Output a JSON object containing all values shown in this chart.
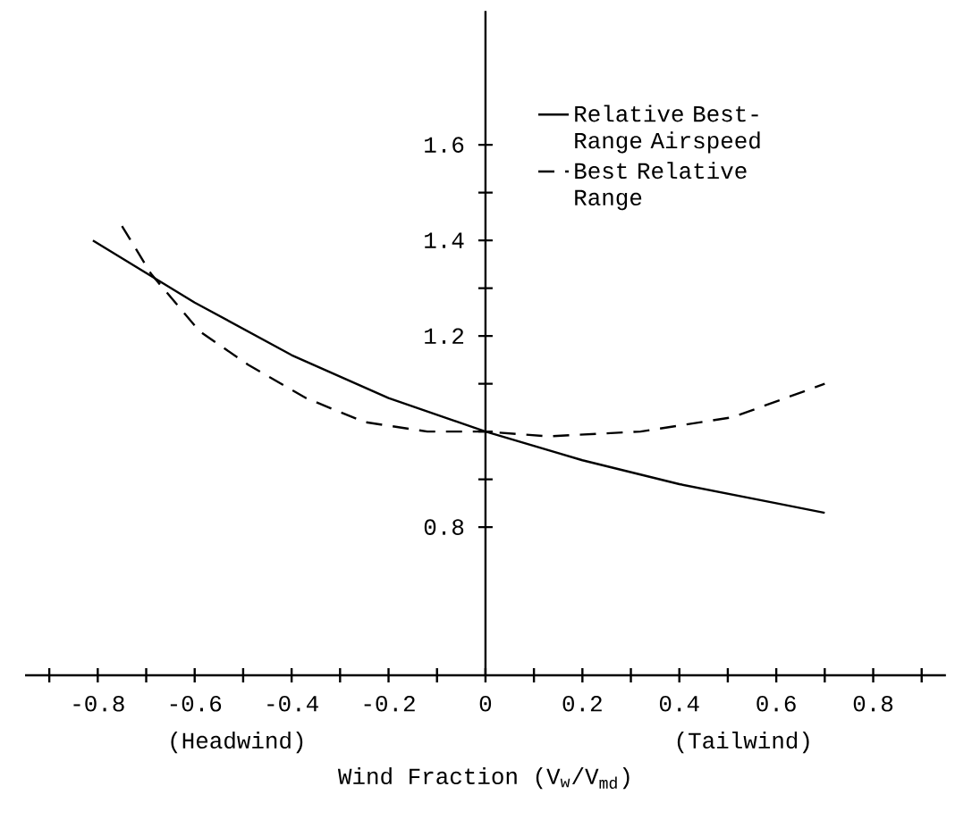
{
  "chart_data": {
    "type": "line",
    "xlabel": "Wind Fraction (V$_{w}$/V$_{md}$)",
    "annotations": [
      "(Headwind)",
      "(Tailwind)"
    ],
    "xlim": [
      -0.95,
      0.95
    ],
    "ylim": [
      0.49,
      1.88
    ],
    "xticks": [
      {
        "value": -0.9,
        "label": null
      },
      -0.8,
      {
        "value": -0.7,
        "label": null
      },
      -0.6,
      {
        "value": -0.5,
        "label": null
      },
      -0.4,
      {
        "value": -0.3,
        "label": null
      },
      -0.2,
      {
        "value": -0.1,
        "label": null
      },
      0,
      {
        "value": 0.1,
        "label": null
      },
      0.2,
      {
        "value": 0.3,
        "label": null
      },
      0.4,
      {
        "value": 0.5,
        "label": null
      },
      0.6,
      {
        "value": 0.7,
        "label": null
      },
      0.8,
      {
        "value": 0.9,
        "label": null
      }
    ],
    "yticks": [
      0.8,
      {
        "value": 0.9,
        "label": null
      },
      {
        "value": 1.0,
        "label": null
      },
      {
        "value": 1.1,
        "label": null
      },
      1.2,
      {
        "value": 1.3,
        "label": null
      },
      1.4,
      {
        "value": 1.5,
        "label": null
      },
      1.6
    ],
    "legend": "top right",
    "grid": false,
    "marker": "none",
    "series": [
      {
        "name": "Relative Best-Range Airspeed",
        "color": "#000000",
        "line_style": "solid",
        "x": [
          -0.81,
          -0.6,
          -0.4,
          -0.2,
          0,
          0.2,
          0.4,
          0.6,
          0.7
        ],
        "values": [
          1.4,
          1.27,
          1.16,
          1.07,
          1.0,
          0.94,
          0.89,
          0.85,
          0.83
        ]
      },
      {
        "name": "Best Relative Range",
        "color": "#000000",
        "line_style": "dashed",
        "x": [
          -0.75,
          -0.69,
          -0.59,
          -0.49,
          -0.37,
          -0.25,
          -0.12,
          0,
          0.13,
          0.32,
          0.51,
          0.7
        ],
        "values": [
          1.43,
          1.33,
          1.21,
          1.14,
          1.07,
          1.02,
          1.0,
          1.0,
          0.99,
          1.0,
          1.03,
          1.1
        ]
      }
    ]
  }
}
